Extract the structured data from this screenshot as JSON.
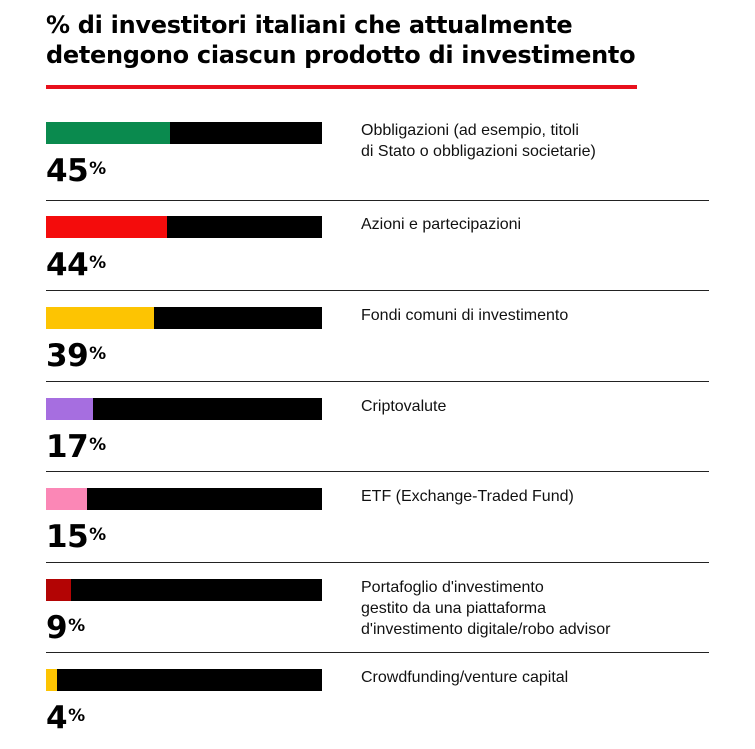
{
  "title": "% di investitori italiani che attualmente detengono ciascun prodotto di investimento",
  "chart_data": {
    "type": "bar",
    "orientation": "horizontal",
    "title": "% di investitori italiani che attualmente detengono ciascun prodotto di investimento",
    "xlim": [
      0,
      100
    ],
    "unit": "%",
    "grid": false,
    "categories": [
      "Obbligazioni (ad esempio, titoli di Stato o obbligazioni societarie)",
      "Azioni e partecipazioni",
      "Fondi comuni di investimento",
      "Criptovalute",
      "ETF (Exchange-Traded Fund)",
      "Portafoglio d'investimento gestito da una piattaforma d'investimento digitale/robo advisor",
      "Crowdfunding/venture capital"
    ],
    "values": [
      45,
      44,
      39,
      17,
      15,
      9,
      4
    ],
    "label_lines": [
      [
        "Obbligazioni (ad esempio, titoli",
        "di Stato o obbligazioni societarie)"
      ],
      [
        "Azioni e partecipazioni"
      ],
      [
        "Fondi comuni di investimento"
      ],
      [
        "Criptovalute"
      ],
      [
        "ETF (Exchange-Traded Fund)"
      ],
      [
        "Portafoglio d'investimento",
        "gestito da una piattaforma",
        "d'investimento digitale/robo advisor"
      ],
      [
        "Crowdfunding/venture capital"
      ]
    ],
    "colors": [
      "#0a8a4e",
      "#f40c0c",
      "#fdc402",
      "#a66ee0",
      "#fb87b6",
      "#b30404",
      "#fdc402"
    ],
    "track_color": "#000000",
    "accent_rule_color": "#e8101c"
  }
}
